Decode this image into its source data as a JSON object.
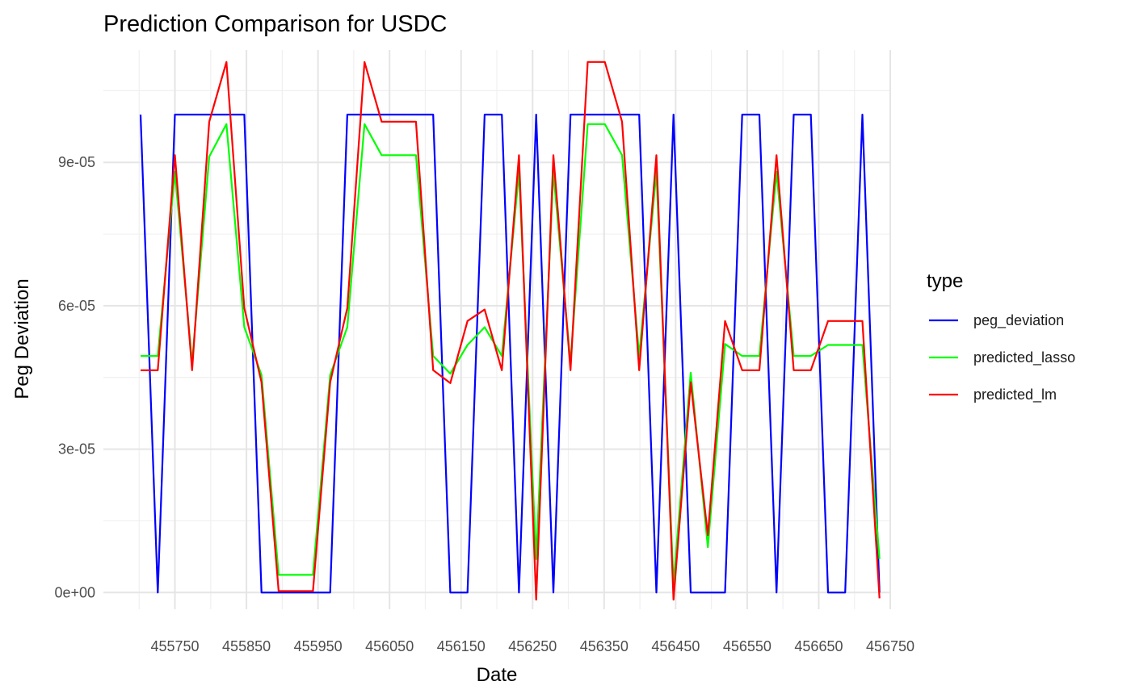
{
  "chart_data": {
    "type": "line",
    "title": "Prediction Comparison for USDC",
    "xlabel": "Date",
    "ylabel": "Peg Deviation",
    "xlim": [
      455650,
      456750
    ],
    "ylim": [
      -3.5e-06,
      0.0001135
    ],
    "x_ticks": [
      455750,
      455850,
      455950,
      456050,
      456150,
      456250,
      456350,
      456450,
      456550,
      456650,
      456750
    ],
    "x_tick_labels": [
      "455750",
      "455850",
      "455950",
      "456050",
      "456150",
      "456250",
      "456350",
      "456450",
      "456550",
      "456650",
      "456750"
    ],
    "y_ticks": [
      0,
      3e-05,
      6e-05,
      9e-05
    ],
    "y_tick_labels": [
      "0e+00",
      "3e-05",
      "6e-05",
      "9e-05"
    ],
    "grid": true,
    "legend": {
      "title": "type",
      "position": "right"
    },
    "x": [
      455702,
      455726,
      455750,
      455774,
      455798,
      455822,
      455847,
      455871,
      455895,
      455919,
      455943,
      455967,
      455991,
      456015,
      456039,
      456063,
      456087,
      456111,
      456135,
      456159,
      456183,
      456207,
      456231,
      456255,
      456279,
      456303,
      456327,
      456351,
      456375,
      456399,
      456423,
      456447,
      456471,
      456495,
      456519,
      456543,
      456567,
      456591,
      456615,
      456639,
      456663,
      456687,
      456711,
      456735
    ],
    "series": [
      {
        "name": "peg_deviation",
        "color": "#0000ff",
        "values": [
          0.0001,
          0,
          0.0001,
          0.0001,
          0.0001,
          0.0001,
          0.0001,
          0,
          0,
          0,
          0,
          0,
          0.0001,
          0.0001,
          0.0001,
          0.0001,
          0.0001,
          0.0001,
          0,
          0,
          0.0001,
          0.0001,
          0,
          0.0001,
          0,
          0.0001,
          0.0001,
          0.0001,
          0.0001,
          0.0001,
          0,
          0.0001,
          0,
          0,
          0,
          0.0001,
          0.0001,
          0,
          0.0001,
          0.0001,
          0,
          0,
          0.0001,
          0
        ]
      },
      {
        "name": "predicted_lasso",
        "color": "#00ff00",
        "values": [
          4.95e-05,
          4.95e-05,
          8.8e-05,
          4.8e-05,
          9.12e-05,
          9.8e-05,
          5.55e-05,
          4.55e-05,
          3.7e-06,
          3.7e-06,
          3.7e-06,
          4.55e-05,
          5.55e-05,
          9.8e-05,
          9.15e-05,
          9.15e-05,
          9.15e-05,
          4.95e-05,
          4.58e-05,
          5.18e-05,
          5.55e-05,
          4.95e-05,
          8.8e-05,
          7e-06,
          8.8e-05,
          4.8e-05,
          9.8e-05,
          9.8e-05,
          9.15e-05,
          4.95e-05,
          8.8e-05,
          1.8e-06,
          4.6e-05,
          9.5e-06,
          5.2e-05,
          4.95e-05,
          4.95e-05,
          8.8e-05,
          4.95e-05,
          4.95e-05,
          5.18e-05,
          5.18e-05,
          5.18e-05,
          7e-06
        ]
      },
      {
        "name": "predicted_lm",
        "color": "#ff0000",
        "values": [
          4.65e-05,
          4.65e-05,
          9.15e-05,
          4.65e-05,
          9.85e-05,
          0.000111,
          5.95e-05,
          4.4e-05,
          3e-07,
          3e-07,
          3e-07,
          4.4e-05,
          5.95e-05,
          0.000111,
          9.85e-05,
          9.85e-05,
          9.85e-05,
          4.65e-05,
          4.38e-05,
          5.68e-05,
          5.92e-05,
          4.65e-05,
          9.15e-05,
          -1.5e-06,
          9.15e-05,
          4.65e-05,
          0.000111,
          0.000111,
          9.85e-05,
          4.65e-05,
          9.15e-05,
          -1.5e-06,
          4.4e-05,
          1.2e-05,
          5.68e-05,
          4.65e-05,
          4.65e-05,
          9.15e-05,
          4.65e-05,
          4.65e-05,
          5.68e-05,
          5.68e-05,
          5.68e-05,
          -1.2e-06
        ]
      }
    ]
  }
}
